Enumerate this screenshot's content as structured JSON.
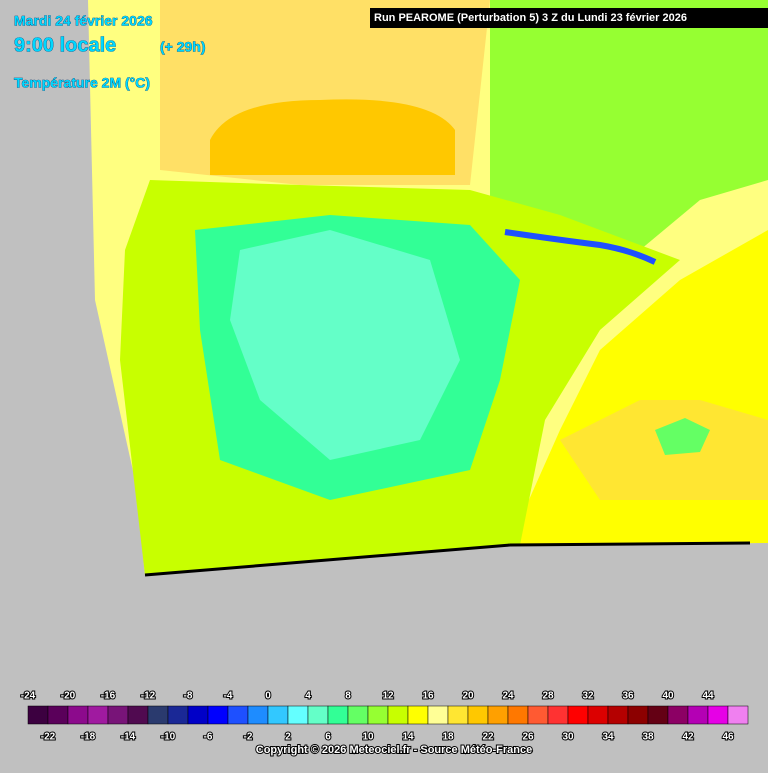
{
  "header": {
    "date": "Mardi 24 février 2026",
    "time": "9:00 locale",
    "lead": "(+ 29h)",
    "variable": "Température 2M (°C)",
    "run": "Run PEAROME (Perturbation 5) 3 Z du Lundi 23 février 2026"
  },
  "legend": {
    "ticks": [
      -24,
      -22,
      -20,
      -18,
      -16,
      -14,
      -12,
      -10,
      -8,
      -6,
      -4,
      -2,
      0,
      2,
      4,
      6,
      8,
      10,
      12,
      14,
      16,
      18,
      20,
      22,
      24,
      26,
      28,
      30,
      32,
      34,
      36,
      38,
      40,
      42,
      44,
      46
    ],
    "colors": [
      "#3c0040",
      "#5a005a",
      "#8c0a8c",
      "#a01aa0",
      "#781478",
      "#500a50",
      "#2a3a6e",
      "#1a2896",
      "#0000c8",
      "#0000ff",
      "#1e50ff",
      "#1e8cff",
      "#32c8ff",
      "#64ffff",
      "#64ffc8",
      "#32ff96",
      "#64ff64",
      "#96ff32",
      "#c8ff00",
      "#ffff00",
      "#ffff96",
      "#ffe632",
      "#ffc800",
      "#ffa000",
      "#ff7800",
      "#ff5a32",
      "#ff3232",
      "#ff0000",
      "#dc0000",
      "#b40000",
      "#8c0000",
      "#640014",
      "#8c0064",
      "#b400b4",
      "#e600e6",
      "#f080f0"
    ]
  },
  "footer": {
    "copyright": "Copyright © 2026 Meteociel.fr - Source Météo-France"
  }
}
